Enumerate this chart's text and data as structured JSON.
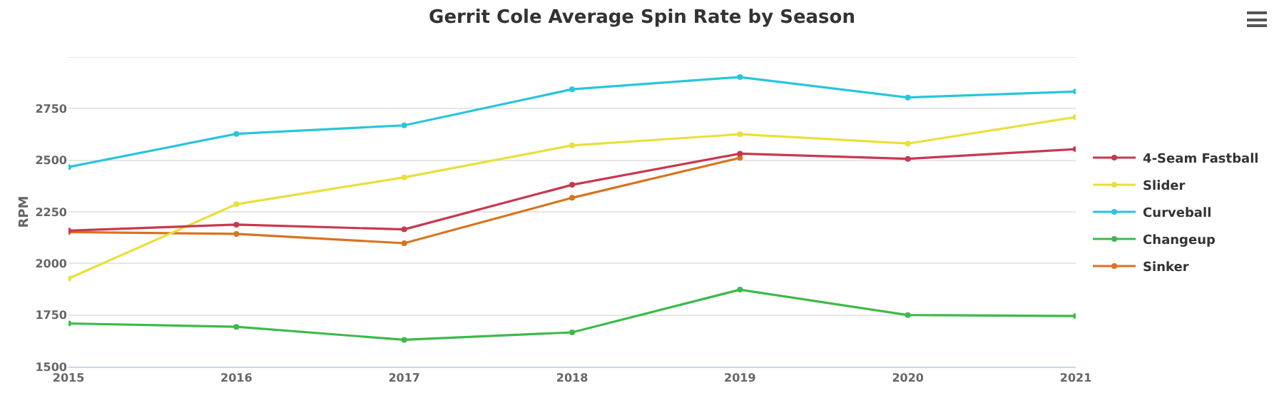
{
  "chart_data": {
    "type": "line",
    "title": "Gerrit Cole Average Spin Rate by Season",
    "ylabel": "RPM",
    "x": [
      2015,
      2016,
      2017,
      2018,
      2019,
      2020,
      2021
    ],
    "series": [
      {
        "name": "4-Seam Fastball",
        "color": "#c8384f",
        "values": [
          2159,
          2188,
          2165,
          2381,
          2532,
          2507,
          2554
        ]
      },
      {
        "name": "Slider",
        "color": "#e8e03a",
        "values": [
          1927,
          2287,
          2417,
          2572,
          2626,
          2581,
          2709
        ]
      },
      {
        "name": "Curveball",
        "color": "#29c5dc",
        "values": [
          2467,
          2628,
          2669,
          2844,
          2903,
          2804,
          2833
        ]
      },
      {
        "name": "Changeup",
        "color": "#3cba4a",
        "values": [
          1709,
          1693,
          1630,
          1666,
          1873,
          1750,
          1745
        ]
      },
      {
        "name": "Sinker",
        "color": "#d9731f",
        "values": [
          2152,
          2143,
          2098,
          2318,
          2512,
          null,
          null
        ]
      }
    ],
    "xlim": [
      2015,
      2021
    ],
    "xticks": [
      2015,
      2016,
      2017,
      2018,
      2019,
      2020,
      2021
    ],
    "ylim": [
      1500,
      3000
    ],
    "yticks": [
      1500,
      1750,
      2000,
      2250,
      2500,
      2750,
      {
        "value": 3000,
        "label": null
      }
    ],
    "grid": "y",
    "legend": "right",
    "marker": "circle",
    "line_style": "solid"
  }
}
